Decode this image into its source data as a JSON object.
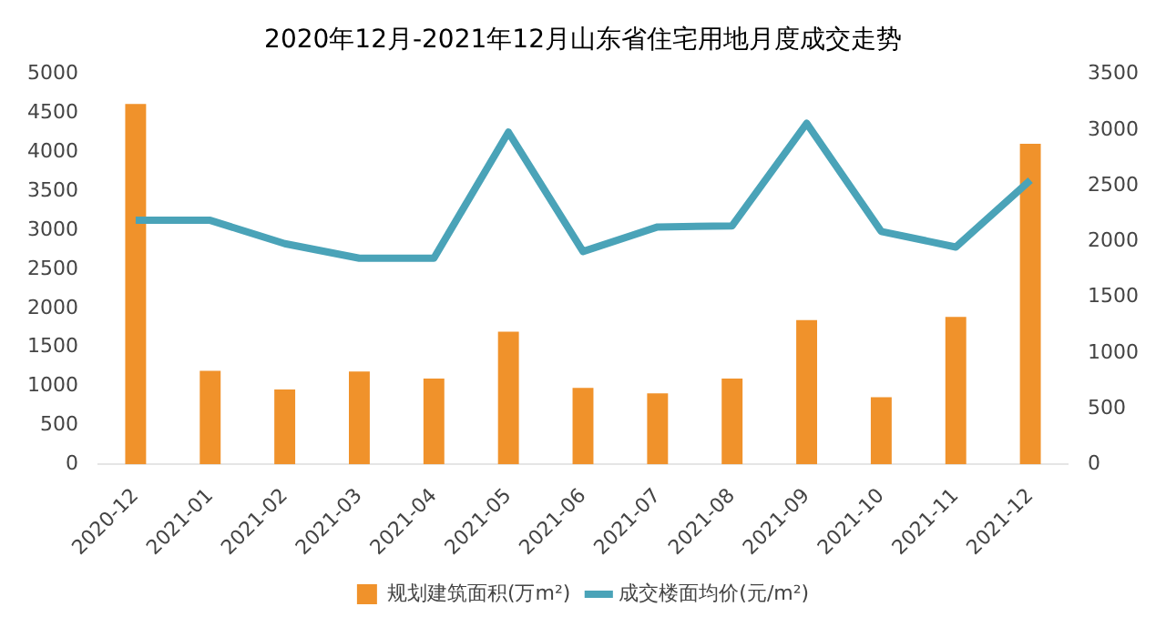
{
  "chart_data": {
    "type": "bar",
    "title": "2020年12月-2021年12月山东省住宅用地月度成交走势",
    "categories": [
      "2020-12",
      "2021-01",
      "2021-02",
      "2021-03",
      "2021-04",
      "2021-05",
      "2021-06",
      "2021-07",
      "2021-08",
      "2021-09",
      "2021-10",
      "2021-11",
      "2021-12"
    ],
    "series": [
      {
        "name": "规划建筑面积(万m²)",
        "color": "#f0922b",
        "values": [
          4620,
          1200,
          960,
          1190,
          1100,
          1700,
          980,
          910,
          1100,
          1850,
          860,
          1890,
          4110
        ]
      },
      {
        "name": "成交楼面均价(元/m²)",
        "type": "line",
        "axis": "y2",
        "color": "#4aa3b8",
        "values": [
          2190,
          2190,
          1980,
          1850,
          1850,
          2980,
          1910,
          2130,
          2140,
          3060,
          2090,
          1950,
          2550
        ]
      }
    ],
    "ylim": [
      0,
      5000
    ],
    "yticks": [
      0,
      500,
      1000,
      1500,
      2000,
      2500,
      3000,
      3500,
      4000,
      4500,
      5000
    ],
    "y2lim": [
      0,
      3500
    ],
    "y2ticks": [
      0,
      500,
      1000,
      1500,
      2000,
      2500,
      3000,
      3500
    ],
    "grid": false,
    "legend": "bottom",
    "marker": "none",
    "line_style": "solid"
  }
}
